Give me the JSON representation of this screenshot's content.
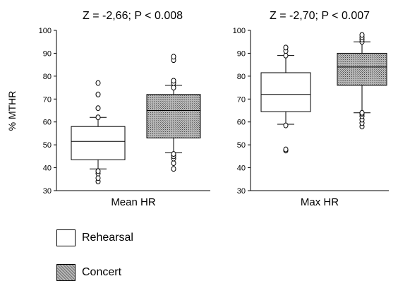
{
  "chart_data": [
    {
      "type": "box",
      "title": "Z = -2,66; P < 0.008",
      "ylabel": "% MTHR",
      "xlabel": "Mean HR",
      "ylim": [
        30,
        100
      ],
      "yticks": [
        30,
        40,
        50,
        60,
        70,
        80,
        90,
        100
      ],
      "grid": false,
      "series": [
        {
          "name": "Rehearsal",
          "whisker_low": 39.5,
          "q1": 43.5,
          "median": 51.5,
          "q3": 58,
          "whisker_high": 62,
          "outliers": [
            34,
            35.5,
            37.5,
            38.5,
            62,
            66,
            72,
            77
          ]
        },
        {
          "name": "Concert",
          "whisker_low": 46.5,
          "q1": 53,
          "median": 65,
          "q3": 72,
          "whisker_high": 76,
          "outliers": [
            39.5,
            42,
            44,
            45,
            46,
            75,
            77,
            78,
            87,
            88.5
          ]
        }
      ]
    },
    {
      "type": "box",
      "title": "Z = -2,70; P < 0.007",
      "ylabel": "",
      "xlabel": "Max HR",
      "ylim": [
        30,
        100
      ],
      "yticks": [
        30,
        40,
        50,
        60,
        70,
        80,
        90,
        100
      ],
      "grid": false,
      "series": [
        {
          "name": "Rehearsal",
          "whisker_low": 59,
          "q1": 64.5,
          "median": 72,
          "q3": 81.5,
          "whisker_high": 89,
          "outliers": [
            47.5,
            48,
            58.5,
            89,
            91,
            92.5
          ]
        },
        {
          "name": "Concert",
          "whisker_low": 64,
          "q1": 76,
          "median": 84,
          "q3": 90,
          "whisker_high": 95,
          "outliers": [
            58,
            59.5,
            61,
            62.5,
            63.5,
            64,
            95,
            96,
            97,
            98
          ]
        }
      ]
    }
  ],
  "legend": [
    {
      "label": "Rehearsal",
      "fill": "#ffffff"
    },
    {
      "label": "Concert",
      "fill": "#9a9a9a"
    }
  ],
  "colors": {
    "rehearsal_fill": "#ffffff",
    "concert_fill": "#9a9a9a",
    "stroke": "#000000"
  }
}
